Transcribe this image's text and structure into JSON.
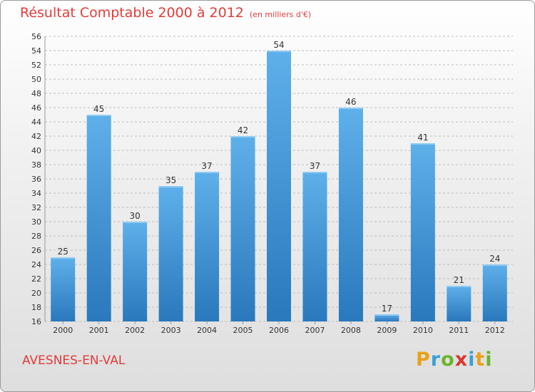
{
  "header": {
    "title": "Résultat Comptable 2000 à 2012",
    "unit": "(en milliers d'€)"
  },
  "footer": {
    "place": "AVESNES-EN-VAL",
    "logo_letters": [
      {
        "char": "P",
        "color": "#e8a11c"
      },
      {
        "char": "r",
        "color": "#3aa0d8"
      },
      {
        "char": "o",
        "color": "#6ab42d"
      },
      {
        "char": "x",
        "color": "#d8382f"
      },
      {
        "char": "i",
        "color": "#3aa0d8"
      },
      {
        "char": "t",
        "color": "#e8a11c"
      },
      {
        "char": "i",
        "color": "#6ab42d"
      }
    ]
  },
  "colors": {
    "title": "#e33b3b",
    "bar_top": "#5eb0ea",
    "bar_bottom": "#2a78bd",
    "grid": "#bdbdbd",
    "axis_text": "#333333"
  },
  "chart_data": {
    "type": "bar",
    "title": "Résultat Comptable 2000 à 2012 (en milliers d'€)",
    "xlabel": "",
    "ylabel": "",
    "categories": [
      "2000",
      "2001",
      "2002",
      "2003",
      "2004",
      "2005",
      "2006",
      "2007",
      "2008",
      "2009",
      "2010",
      "2011",
      "2012"
    ],
    "values": [
      25,
      45,
      30,
      35,
      37,
      42,
      54,
      37,
      46,
      17,
      41,
      21,
      24
    ],
    "ylim": [
      16,
      56
    ],
    "ytick_step": 2,
    "grid": true,
    "legend": "none"
  }
}
